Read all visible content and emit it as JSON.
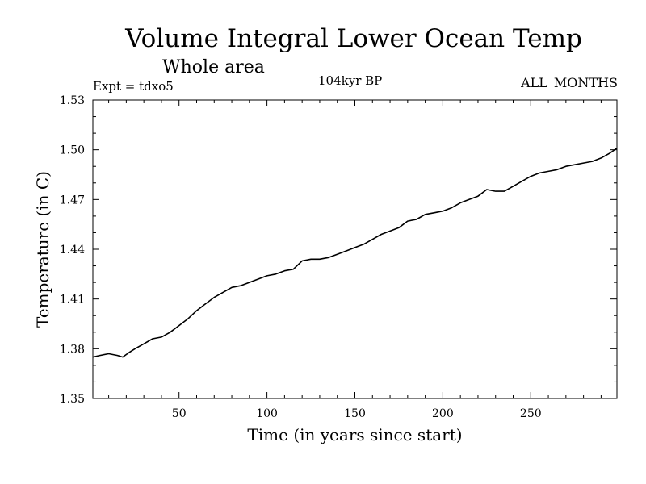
{
  "header": {
    "title": "Volume Integral Lower Ocean Temp",
    "subtitle": "Whole area",
    "experiment": "Expt = tdxo5",
    "period": "104kyr BP",
    "months": "ALL_MONTHS"
  },
  "chart_data": {
    "type": "line",
    "title": "Volume Integral Lower Ocean Temp",
    "xlabel": "Time (in years since start)",
    "ylabel": "Temperature (in C)",
    "xlim": [
      1,
      299
    ],
    "ylim": [
      1.35,
      1.53
    ],
    "xticks": [
      50,
      100,
      150,
      200,
      250
    ],
    "xtick_labels": [
      "50",
      "100",
      "150",
      "200",
      "250"
    ],
    "yticks": [
      1.35,
      1.38,
      1.41,
      1.44,
      1.47,
      1.5,
      1.53
    ],
    "ytick_labels": [
      "1.35",
      "1.38",
      "1.41",
      "1.44",
      "1.47",
      "1.50",
      "1.53"
    ],
    "grid": false,
    "series": [
      {
        "x": [
          1,
          5,
          10,
          15,
          18,
          22,
          25,
          30,
          35,
          40,
          45,
          50,
          55,
          60,
          65,
          70,
          75,
          80,
          85,
          90,
          95,
          100,
          105,
          110,
          115,
          120,
          125,
          130,
          135,
          140,
          145,
          150,
          155,
          160,
          165,
          170,
          175,
          180,
          185,
          190,
          195,
          200,
          205,
          210,
          215,
          220,
          225,
          230,
          235,
          240,
          245,
          250,
          255,
          260,
          265,
          270,
          275,
          280,
          285,
          290,
          295,
          299
        ],
        "y": [
          1.375,
          1.376,
          1.377,
          1.376,
          1.375,
          1.378,
          1.38,
          1.383,
          1.386,
          1.387,
          1.39,
          1.394,
          1.398,
          1.403,
          1.407,
          1.411,
          1.414,
          1.417,
          1.418,
          1.42,
          1.422,
          1.424,
          1.425,
          1.427,
          1.428,
          1.433,
          1.434,
          1.434,
          1.435,
          1.437,
          1.439,
          1.441,
          1.443,
          1.446,
          1.449,
          1.451,
          1.453,
          1.457,
          1.458,
          1.461,
          1.462,
          1.463,
          1.465,
          1.468,
          1.47,
          1.472,
          1.476,
          1.475,
          1.475,
          1.478,
          1.481,
          1.484,
          1.486,
          1.487,
          1.488,
          1.49,
          1.491,
          1.492,
          1.493,
          1.495,
          1.498,
          1.501
        ]
      }
    ]
  }
}
